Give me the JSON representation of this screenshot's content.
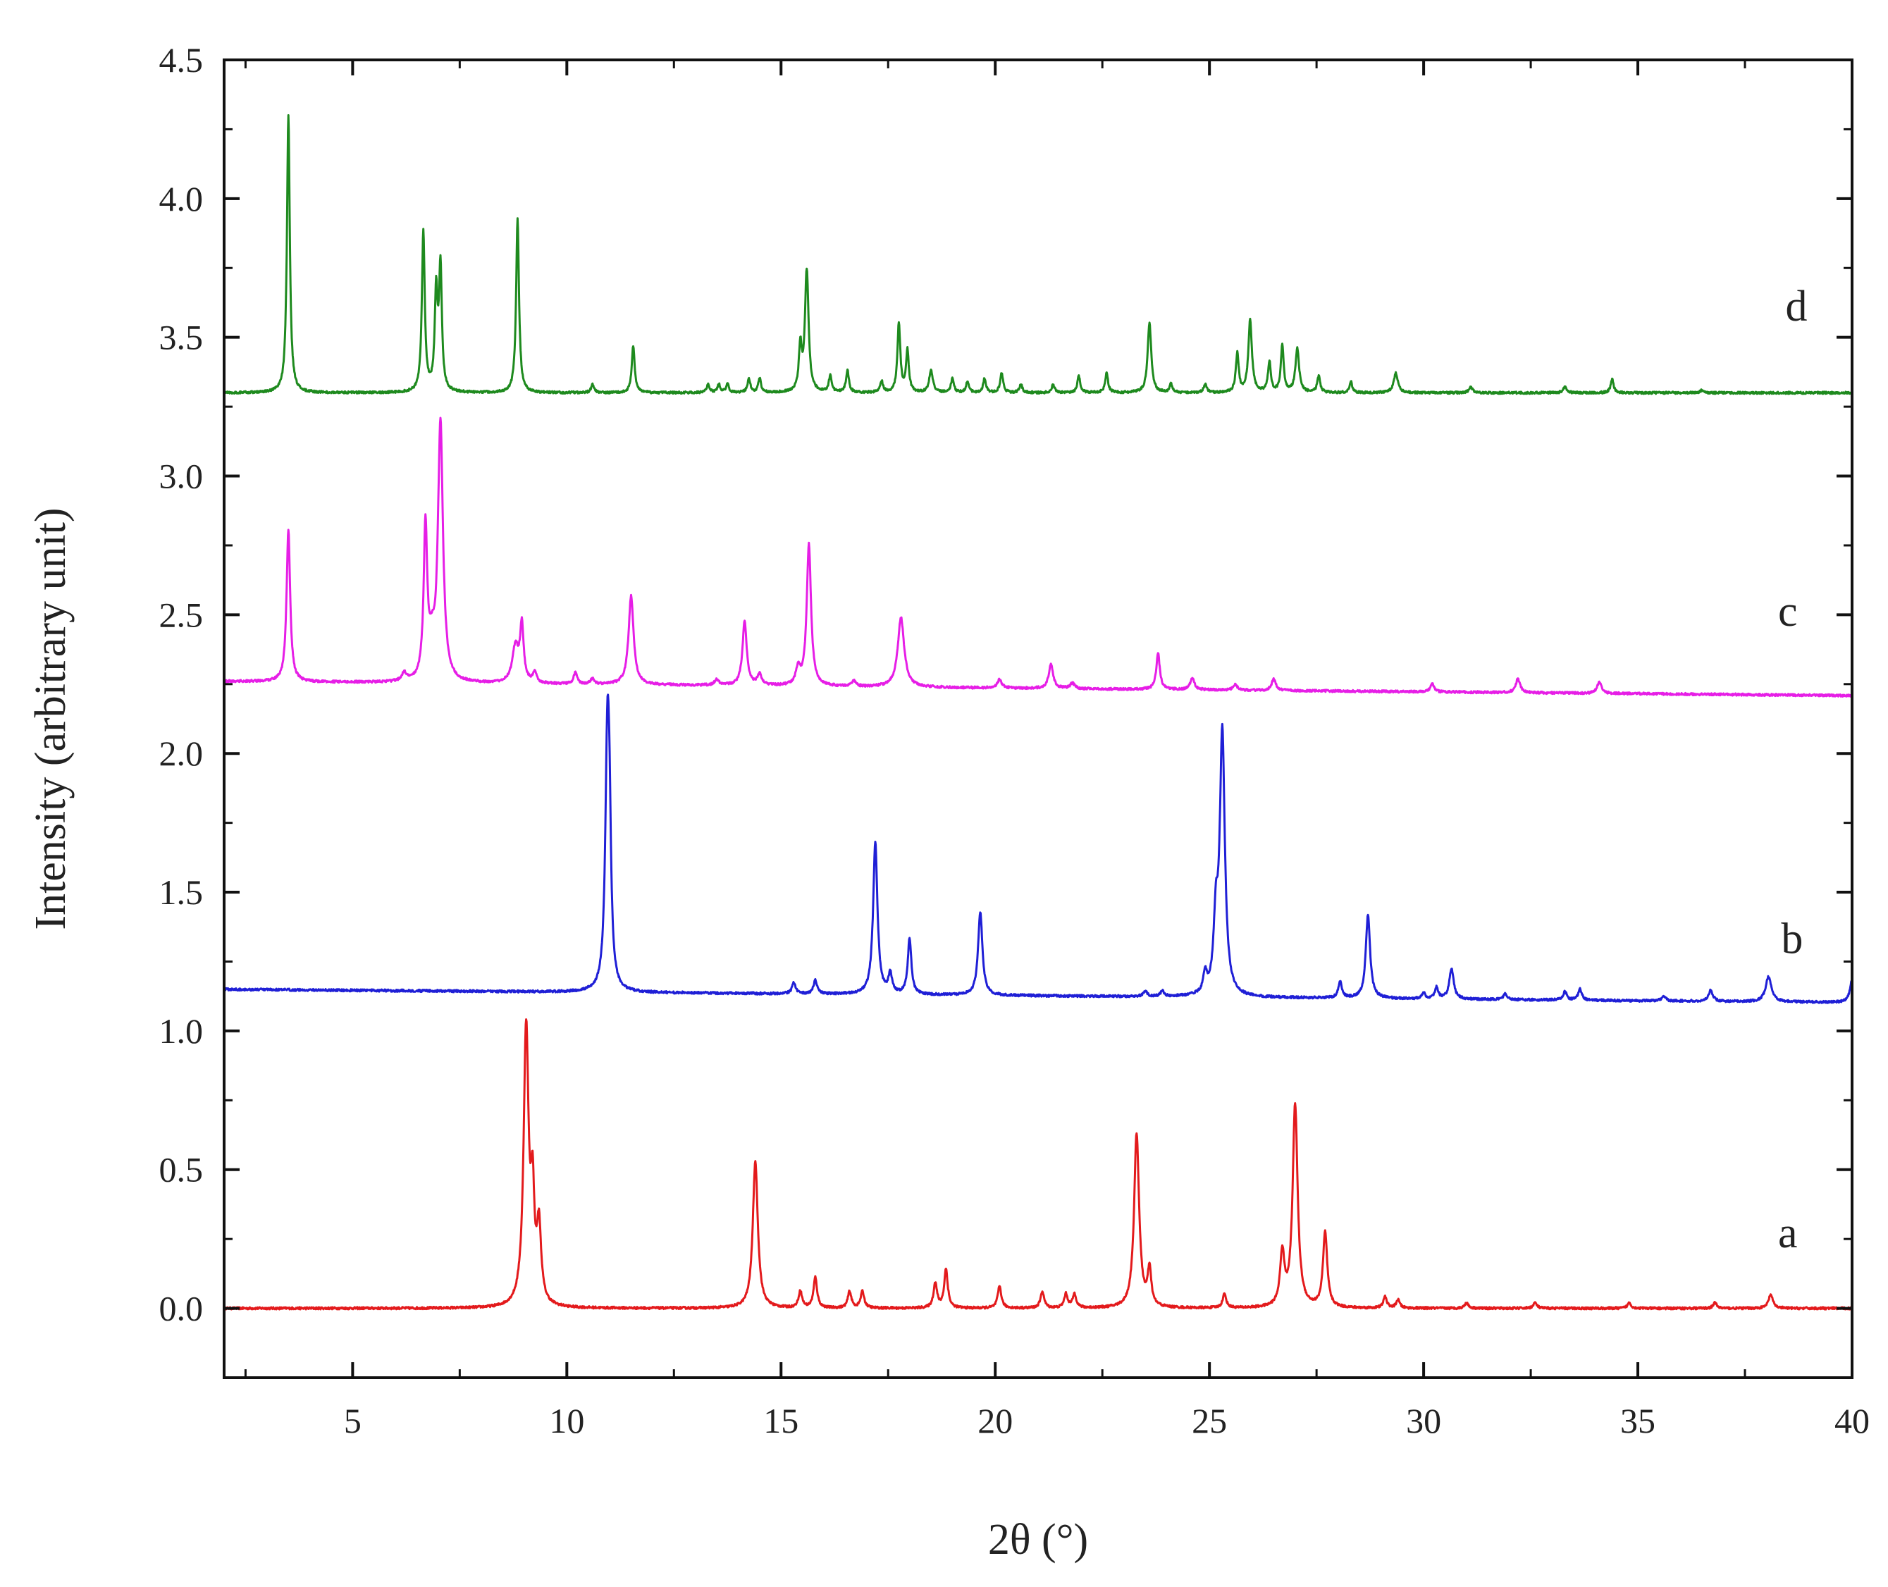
{
  "chart_data": {
    "type": "line",
    "title": "",
    "xlabel": "2θ (°)",
    "ylabel": "Intensity (arbitrary unit)",
    "xlim": [
      2,
      40
    ],
    "ylim": [
      -0.25,
      4.5
    ],
    "xticks": [
      5,
      10,
      15,
      20,
      25,
      30,
      35,
      40
    ],
    "yticks": [
      0.0,
      0.5,
      1.0,
      1.5,
      2.0,
      2.5,
      3.0,
      3.5,
      4.0,
      4.5
    ],
    "ytick_labels": [
      "0.0",
      "0.5",
      "1.0",
      "1.5",
      "2.0",
      "2.5",
      "3.0",
      "3.5",
      "4.0",
      "4.5"
    ],
    "grid": false,
    "series": [
      {
        "name": "a",
        "color": "#e31a1c",
        "label_pos": {
          "x": 38.5,
          "y": 0.22
        },
        "baseline": 0.0,
        "baseline_slope": 0.0,
        "peaks": [
          [
            9.05,
            1.0,
            0.07
          ],
          [
            9.35,
            0.27,
            0.06
          ],
          [
            9.2,
            0.35,
            0.05
          ],
          [
            14.4,
            0.53,
            0.07
          ],
          [
            15.45,
            0.06,
            0.05
          ],
          [
            15.8,
            0.11,
            0.05
          ],
          [
            16.6,
            0.06,
            0.05
          ],
          [
            16.9,
            0.06,
            0.05
          ],
          [
            18.6,
            0.09,
            0.05
          ],
          [
            18.85,
            0.14,
            0.05
          ],
          [
            20.1,
            0.08,
            0.05
          ],
          [
            21.1,
            0.06,
            0.05
          ],
          [
            21.65,
            0.05,
            0.05
          ],
          [
            21.85,
            0.05,
            0.05
          ],
          [
            23.3,
            0.63,
            0.07
          ],
          [
            23.6,
            0.13,
            0.05
          ],
          [
            25.35,
            0.05,
            0.05
          ],
          [
            26.7,
            0.19,
            0.06
          ],
          [
            27.0,
            0.73,
            0.07
          ],
          [
            27.7,
            0.27,
            0.06
          ],
          [
            29.1,
            0.04,
            0.05
          ],
          [
            29.4,
            0.03,
            0.05
          ],
          [
            31.0,
            0.02,
            0.05
          ],
          [
            32.6,
            0.02,
            0.05
          ],
          [
            34.8,
            0.02,
            0.05
          ],
          [
            36.8,
            0.02,
            0.05
          ],
          [
            38.1,
            0.05,
            0.06
          ]
        ]
      },
      {
        "name": "b",
        "color": "#1f1fd6",
        "label_pos": {
          "x": 38.6,
          "y": 1.28
        },
        "baseline": 1.15,
        "baseline_slope": -0.00125,
        "peaks": [
          [
            10.95,
            0.95,
            0.06
          ],
          [
            11.0,
            0.3,
            0.04
          ],
          [
            15.3,
            0.04,
            0.05
          ],
          [
            15.8,
            0.05,
            0.05
          ],
          [
            17.2,
            0.55,
            0.06
          ],
          [
            17.55,
            0.07,
            0.05
          ],
          [
            18.0,
            0.2,
            0.05
          ],
          [
            19.65,
            0.3,
            0.06
          ],
          [
            23.5,
            0.02,
            0.05
          ],
          [
            23.9,
            0.02,
            0.05
          ],
          [
            24.9,
            0.07,
            0.05
          ],
          [
            25.15,
            0.24,
            0.06
          ],
          [
            25.3,
            0.95,
            0.07
          ],
          [
            28.05,
            0.06,
            0.05
          ],
          [
            28.7,
            0.3,
            0.06
          ],
          [
            30.0,
            0.02,
            0.05
          ],
          [
            30.3,
            0.04,
            0.05
          ],
          [
            30.65,
            0.11,
            0.06
          ],
          [
            31.9,
            0.02,
            0.05
          ],
          [
            33.3,
            0.03,
            0.05
          ],
          [
            33.65,
            0.04,
            0.05
          ],
          [
            35.6,
            0.02,
            0.05
          ],
          [
            36.7,
            0.04,
            0.06
          ],
          [
            38.05,
            0.09,
            0.08
          ],
          [
            40.0,
            0.08,
            0.06
          ]
        ]
      },
      {
        "name": "c",
        "color": "#e61ee6",
        "label_pos": {
          "x": 38.5,
          "y": 2.46
        },
        "baseline": 2.26,
        "baseline_slope": -0.00135,
        "peaks": [
          [
            3.5,
            0.55,
            0.05
          ],
          [
            6.2,
            0.03,
            0.06
          ],
          [
            6.7,
            0.55,
            0.05
          ],
          [
            6.85,
            0.1,
            0.08
          ],
          [
            7.05,
            0.93,
            0.07
          ],
          [
            8.8,
            0.13,
            0.09
          ],
          [
            8.95,
            0.2,
            0.05
          ],
          [
            9.25,
            0.04,
            0.05
          ],
          [
            10.2,
            0.04,
            0.05
          ],
          [
            10.6,
            0.02,
            0.05
          ],
          [
            11.5,
            0.32,
            0.07
          ],
          [
            13.5,
            0.02,
            0.06
          ],
          [
            14.15,
            0.23,
            0.06
          ],
          [
            14.5,
            0.04,
            0.06
          ],
          [
            15.4,
            0.06,
            0.06
          ],
          [
            15.65,
            0.51,
            0.06
          ],
          [
            16.7,
            0.02,
            0.05
          ],
          [
            17.8,
            0.25,
            0.09
          ],
          [
            20.1,
            0.03,
            0.06
          ],
          [
            21.3,
            0.09,
            0.06
          ],
          [
            21.8,
            0.02,
            0.06
          ],
          [
            23.8,
            0.13,
            0.05
          ],
          [
            24.6,
            0.04,
            0.06
          ],
          [
            25.6,
            0.02,
            0.06
          ],
          [
            26.5,
            0.04,
            0.06
          ],
          [
            30.2,
            0.03,
            0.05
          ],
          [
            32.2,
            0.05,
            0.06
          ],
          [
            34.1,
            0.04,
            0.06
          ]
        ]
      },
      {
        "name": "d",
        "color": "#1e8a1e",
        "label_pos": {
          "x": 38.7,
          "y": 3.56
        },
        "baseline": 3.3,
        "baseline_slope": 0.0,
        "peaks": [
          [
            3.5,
            1.0,
            0.04
          ],
          [
            6.65,
            0.58,
            0.04
          ],
          [
            6.95,
            0.35,
            0.04
          ],
          [
            7.05,
            0.44,
            0.04
          ],
          [
            8.85,
            0.63,
            0.04
          ],
          [
            10.6,
            0.03,
            0.04
          ],
          [
            11.55,
            0.17,
            0.04
          ],
          [
            13.3,
            0.03,
            0.04
          ],
          [
            13.55,
            0.03,
            0.04
          ],
          [
            13.75,
            0.03,
            0.04
          ],
          [
            14.25,
            0.05,
            0.04
          ],
          [
            14.5,
            0.05,
            0.04
          ],
          [
            15.45,
            0.16,
            0.04
          ],
          [
            15.6,
            0.44,
            0.05
          ],
          [
            16.15,
            0.06,
            0.04
          ],
          [
            16.55,
            0.08,
            0.04
          ],
          [
            17.35,
            0.04,
            0.04
          ],
          [
            17.75,
            0.25,
            0.04
          ],
          [
            17.95,
            0.15,
            0.04
          ],
          [
            18.5,
            0.08,
            0.05
          ],
          [
            19.0,
            0.05,
            0.04
          ],
          [
            19.35,
            0.04,
            0.04
          ],
          [
            19.75,
            0.05,
            0.04
          ],
          [
            20.15,
            0.07,
            0.04
          ],
          [
            20.6,
            0.03,
            0.04
          ],
          [
            21.35,
            0.03,
            0.04
          ],
          [
            21.95,
            0.06,
            0.04
          ],
          [
            22.6,
            0.07,
            0.04
          ],
          [
            23.6,
            0.25,
            0.05
          ],
          [
            24.1,
            0.03,
            0.04
          ],
          [
            24.9,
            0.03,
            0.04
          ],
          [
            25.65,
            0.14,
            0.04
          ],
          [
            25.95,
            0.26,
            0.05
          ],
          [
            26.4,
            0.11,
            0.04
          ],
          [
            26.7,
            0.17,
            0.04
          ],
          [
            27.05,
            0.16,
            0.05
          ],
          [
            27.55,
            0.06,
            0.04
          ],
          [
            28.3,
            0.04,
            0.04
          ],
          [
            29.35,
            0.07,
            0.06
          ],
          [
            31.1,
            0.02,
            0.05
          ],
          [
            33.3,
            0.02,
            0.05
          ],
          [
            34.4,
            0.05,
            0.04
          ],
          [
            36.5,
            0.01,
            0.05
          ]
        ]
      }
    ]
  }
}
